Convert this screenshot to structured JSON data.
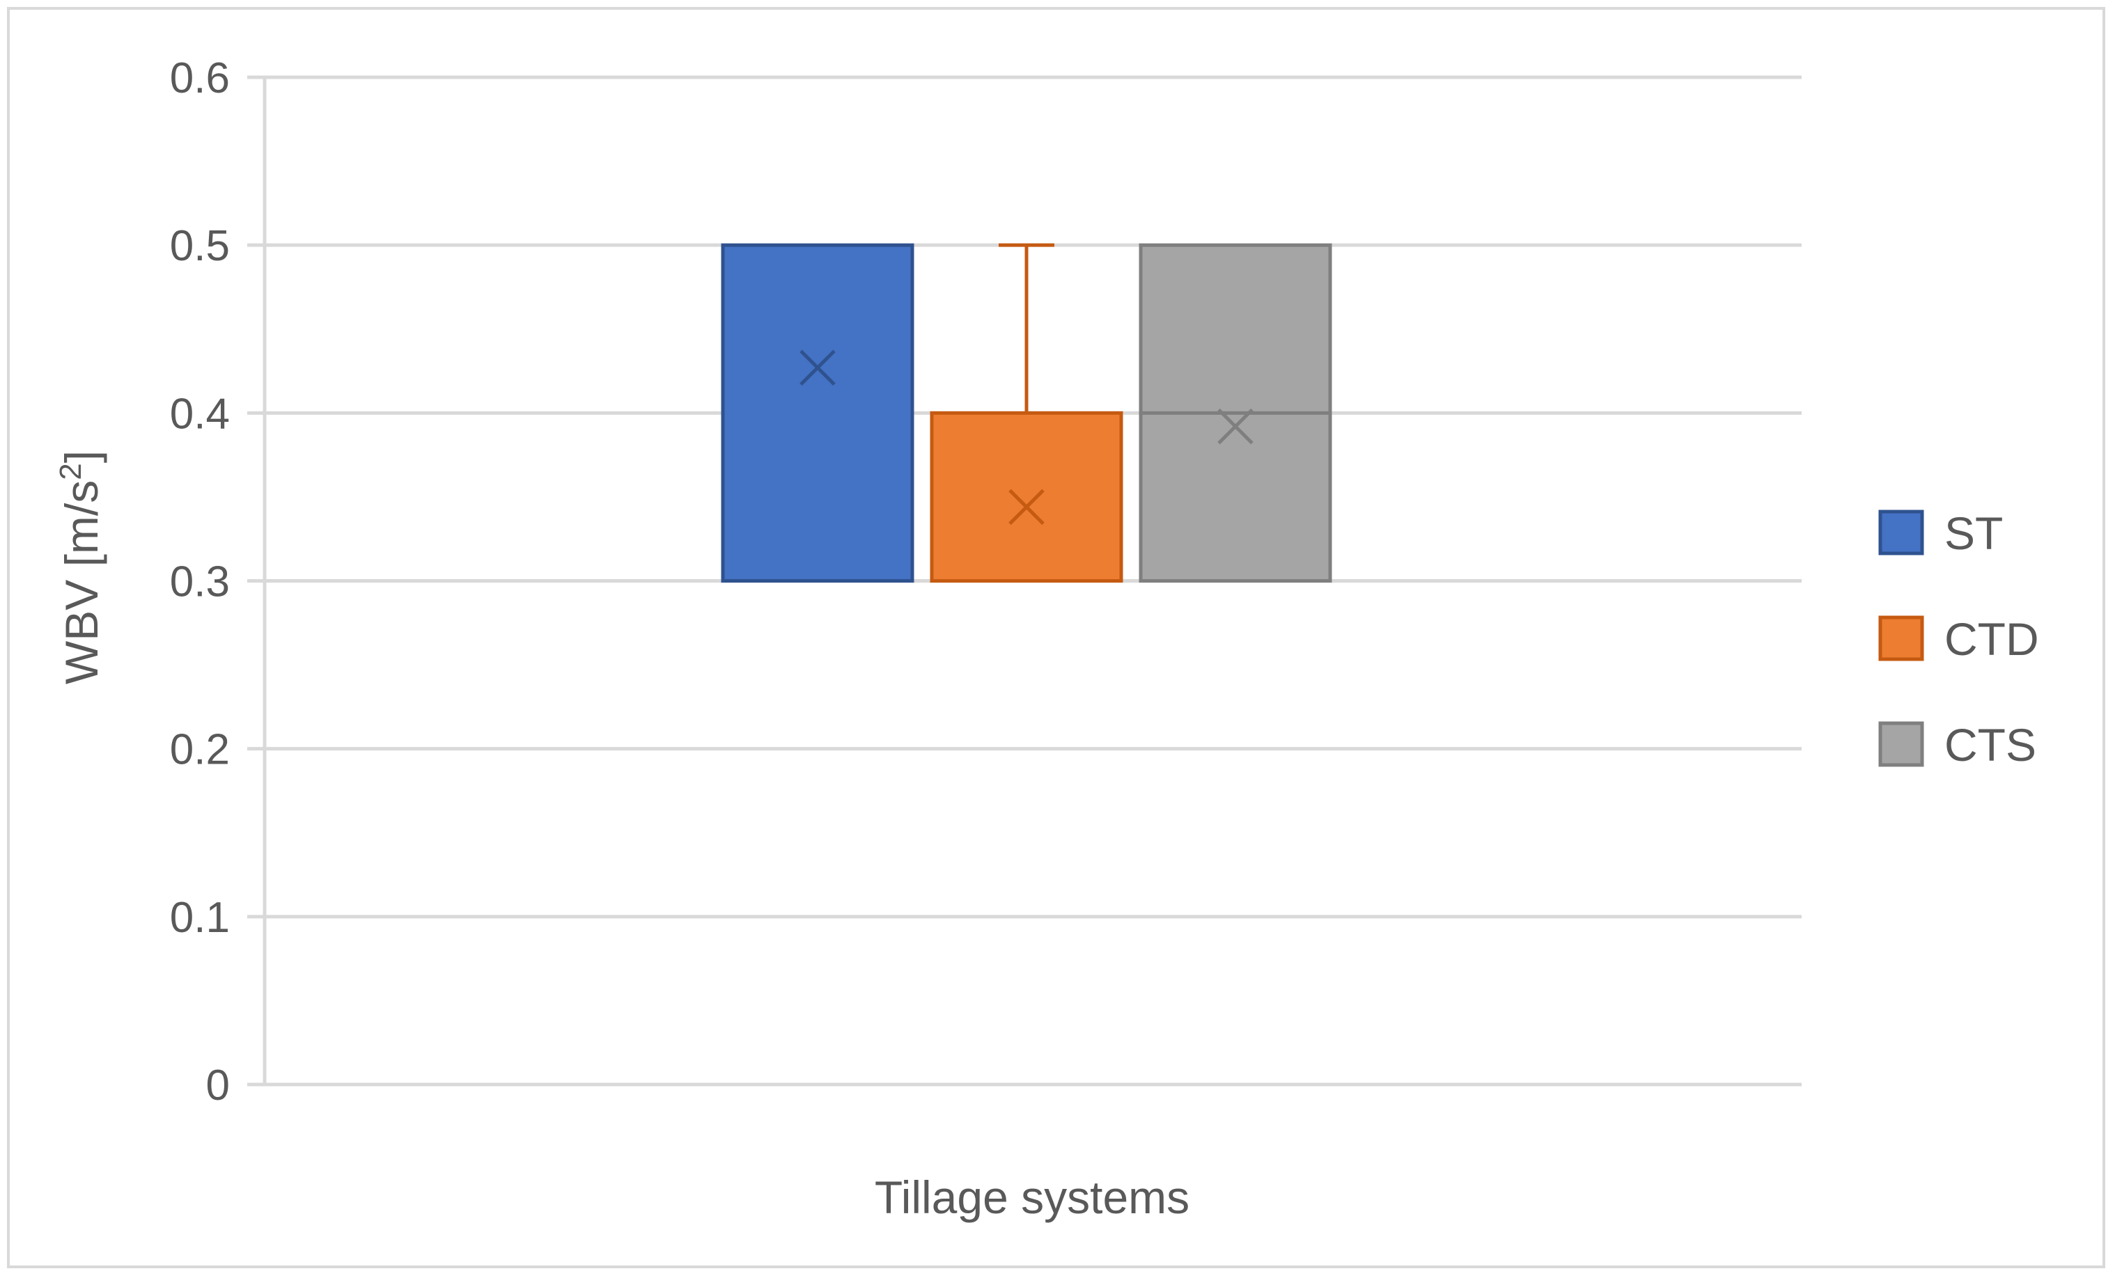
{
  "chart_data": {
    "type": "box",
    "xlabel": "Tillage systems",
    "ylabel_main": "WBV [m/s",
    "ylabel_sup": "2",
    "ylabel_end": "]",
    "ylim": [
      0,
      0.6
    ],
    "yticks": [
      0,
      0.1,
      0.2,
      0.3,
      0.4,
      0.5,
      0.6
    ],
    "ytick_labels": [
      "0",
      "0.1",
      "0.2",
      "0.3",
      "0.4",
      "0.5",
      "0.6"
    ],
    "grid": true,
    "legend_position": "right",
    "series": [
      {
        "name": "ST",
        "color": "#4472c4",
        "stroke": "#2f528f",
        "min": 0.3,
        "q1": 0.3,
        "median": 0.5,
        "q3": 0.5,
        "max": 0.5,
        "mean": 0.427
      },
      {
        "name": "CTD",
        "color": "#ed7d31",
        "stroke": "#c55a11",
        "min": 0.3,
        "q1": 0.3,
        "median": 0.3,
        "q3": 0.4,
        "max": 0.5,
        "mean": 0.344
      },
      {
        "name": "CTS",
        "color": "#a5a5a5",
        "stroke": "#7f7f7f",
        "min": 0.3,
        "q1": 0.3,
        "median": 0.4,
        "q3": 0.5,
        "max": 0.5,
        "mean": 0.392
      }
    ]
  }
}
